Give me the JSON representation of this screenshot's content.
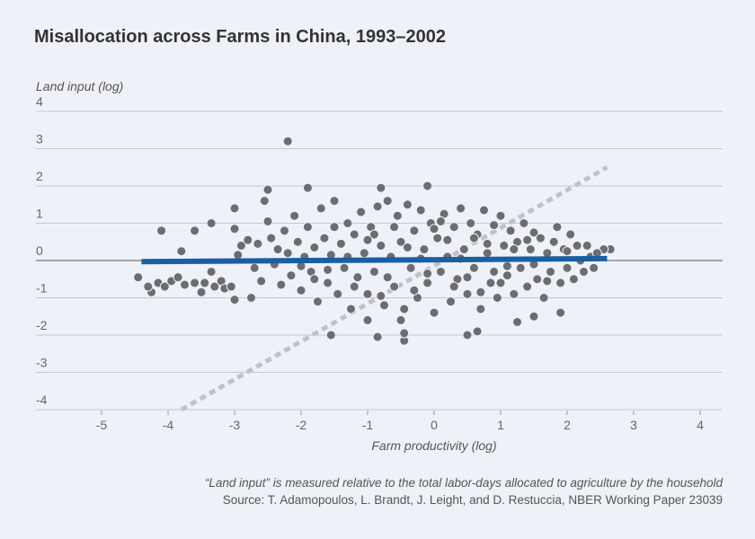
{
  "chart_data": {
    "type": "scatter",
    "title": "Misallocation across Farms in China, 1993–2002",
    "xlabel": "Farm productivity (log)",
    "ylabel": "Land input (log)",
    "xlim": [
      -5.5,
      4.3
    ],
    "ylim": [
      -4,
      4
    ],
    "xticks": [
      "-5",
      "-4",
      "-3",
      "-2",
      "-1",
      "0",
      "1",
      "2",
      "3",
      "4"
    ],
    "yticks": [
      "4",
      "3",
      "2",
      "1",
      "0",
      "-1",
      "-2",
      "-3",
      "-4"
    ],
    "grid": true,
    "fit_line": {
      "x": [
        -4.4,
        2.6
      ],
      "y": [
        -0.03,
        0.05
      ],
      "color": "#1a5fa0"
    },
    "reference_line": {
      "x": [
        -3.8,
        2.6
      ],
      "y": [
        -4,
        2.5
      ],
      "color": "#bfc2c6",
      "style": "dashed"
    },
    "point_color": "#6b6d70",
    "points": [
      [
        -2.2,
        3.2
      ],
      [
        -0.1,
        2.0
      ],
      [
        -0.8,
        1.95
      ],
      [
        -1.9,
        1.95
      ],
      [
        -2.5,
        1.9
      ],
      [
        -2.55,
        1.6
      ],
      [
        -3.0,
        1.4
      ],
      [
        -4.1,
        0.8
      ],
      [
        -3.6,
        0.8
      ],
      [
        -3.35,
        1.0
      ],
      [
        -3.0,
        0.85
      ],
      [
        -4.45,
        -0.45
      ],
      [
        -4.25,
        -0.85
      ],
      [
        -3.8,
        0.25
      ],
      [
        -3.0,
        -1.05
      ],
      [
        -2.75,
        -1.0
      ],
      [
        -1.55,
        -2.0
      ],
      [
        -0.85,
        -2.05
      ],
      [
        -0.45,
        -2.15
      ],
      [
        -0.45,
        -1.95
      ],
      [
        -0.5,
        -1.6
      ],
      [
        0.5,
        -2.0
      ],
      [
        0.65,
        -1.9
      ],
      [
        -1.0,
        -1.6
      ],
      [
        1.25,
        -1.65
      ],
      [
        1.5,
        -1.5
      ],
      [
        1.9,
        -1.4
      ],
      [
        2.65,
        0.3
      ],
      [
        2.55,
        0.3
      ],
      [
        2.3,
        0.4
      ],
      [
        -4.3,
        -0.7
      ],
      [
        -4.15,
        -0.6
      ],
      [
        -4.05,
        -0.7
      ],
      [
        -3.95,
        -0.55
      ],
      [
        -3.85,
        -0.45
      ],
      [
        -3.75,
        -0.65
      ],
      [
        -3.6,
        -0.6
      ],
      [
        -3.5,
        -0.85
      ],
      [
        -3.45,
        -0.6
      ],
      [
        -3.35,
        -0.3
      ],
      [
        -3.3,
        -0.7
      ],
      [
        -3.2,
        -0.55
      ],
      [
        -3.15,
        -0.75
      ],
      [
        -3.05,
        -0.7
      ],
      [
        -2.95,
        0.15
      ],
      [
        -2.9,
        0.4
      ],
      [
        -2.8,
        0.55
      ],
      [
        -2.7,
        -0.2
      ],
      [
        -2.65,
        0.45
      ],
      [
        -2.6,
        -0.55
      ],
      [
        -2.5,
        1.05
      ],
      [
        -2.45,
        0.6
      ],
      [
        -2.4,
        -0.1
      ],
      [
        -2.35,
        0.3
      ],
      [
        -2.3,
        -0.65
      ],
      [
        -2.25,
        0.8
      ],
      [
        -2.2,
        0.2
      ],
      [
        -2.15,
        -0.4
      ],
      [
        -2.1,
        1.2
      ],
      [
        -2.05,
        0.5
      ],
      [
        -2.0,
        -0.8
      ],
      [
        -1.95,
        0.1
      ],
      [
        -1.9,
        0.9
      ],
      [
        -1.85,
        -0.3
      ],
      [
        -1.8,
        0.35
      ],
      [
        -1.75,
        -1.1
      ],
      [
        -1.7,
        1.4
      ],
      [
        -1.65,
        0.6
      ],
      [
        -1.6,
        -0.6
      ],
      [
        -1.55,
        0.15
      ],
      [
        -1.5,
        1.6
      ],
      [
        -1.45,
        -0.9
      ],
      [
        -1.4,
        0.45
      ],
      [
        -1.35,
        -0.2
      ],
      [
        -1.3,
        1.0
      ],
      [
        -1.25,
        -1.3
      ],
      [
        -1.2,
        0.7
      ],
      [
        -1.15,
        -0.45
      ],
      [
        -1.1,
        1.3
      ],
      [
        -1.05,
        0.2
      ],
      [
        -1.0,
        -0.9
      ],
      [
        -0.95,
        0.9
      ],
      [
        -0.9,
        -0.3
      ],
      [
        -0.85,
        1.45
      ],
      [
        -0.8,
        0.4
      ],
      [
        -0.75,
        -1.2
      ],
      [
        -0.7,
        1.6
      ],
      [
        -0.65,
        0.1
      ],
      [
        -0.6,
        -0.7
      ],
      [
        -0.55,
        1.2
      ],
      [
        -0.5,
        0.5
      ],
      [
        -0.45,
        -1.3
      ],
      [
        -0.4,
        1.5
      ],
      [
        -0.35,
        -0.2
      ],
      [
        -0.3,
        0.8
      ],
      [
        -0.25,
        -1.0
      ],
      [
        -0.2,
        1.35
      ],
      [
        -0.15,
        0.3
      ],
      [
        -0.1,
        -0.6
      ],
      [
        -0.05,
        1.0
      ],
      [
        0.0,
        -1.4
      ],
      [
        0.05,
        0.6
      ],
      [
        0.1,
        -0.3
      ],
      [
        0.15,
        1.25
      ],
      [
        0.2,
        0.1
      ],
      [
        0.25,
        -1.1
      ],
      [
        0.3,
        0.9
      ],
      [
        0.35,
        -0.5
      ],
      [
        0.4,
        1.4
      ],
      [
        0.45,
        0.3
      ],
      [
        0.5,
        -0.9
      ],
      [
        0.55,
        1.0
      ],
      [
        0.6,
        -0.2
      ],
      [
        0.65,
        0.7
      ],
      [
        0.7,
        -1.3
      ],
      [
        0.75,
        1.35
      ],
      [
        0.8,
        0.2
      ],
      [
        0.85,
        -0.6
      ],
      [
        0.9,
        0.95
      ],
      [
        0.95,
        -1.0
      ],
      [
        1.0,
        1.2
      ],
      [
        1.05,
        0.4
      ],
      [
        1.1,
        -0.4
      ],
      [
        1.15,
        0.8
      ],
      [
        1.2,
        -0.9
      ],
      [
        1.25,
        0.5
      ],
      [
        1.3,
        -0.2
      ],
      [
        1.35,
        1.0
      ],
      [
        1.4,
        -0.7
      ],
      [
        1.45,
        0.3
      ],
      [
        1.5,
        0.75
      ],
      [
        1.55,
        -0.5
      ],
      [
        1.6,
        0.6
      ],
      [
        1.65,
        -1.0
      ],
      [
        1.7,
        0.2
      ],
      [
        1.75,
        -0.3
      ],
      [
        1.8,
        0.5
      ],
      [
        1.85,
        0.9
      ],
      [
        1.9,
        -0.6
      ],
      [
        1.95,
        0.3
      ],
      [
        2.0,
        -0.2
      ],
      [
        2.05,
        0.7
      ],
      [
        2.1,
        -0.5
      ],
      [
        2.15,
        0.4
      ],
      [
        2.2,
        0.0
      ],
      [
        2.25,
        -0.3
      ],
      [
        2.35,
        0.1
      ],
      [
        2.4,
        -0.2
      ],
      [
        2.45,
        0.2
      ],
      [
        -1.8,
        -0.5
      ],
      [
        -1.5,
        0.9
      ],
      [
        -1.2,
        -0.7
      ],
      [
        -0.9,
        0.7
      ],
      [
        -0.6,
        0.9
      ],
      [
        -0.3,
        -0.8
      ],
      [
        0.0,
        0.85
      ],
      [
        0.3,
        -0.7
      ],
      [
        0.6,
        0.6
      ],
      [
        0.9,
        -0.3
      ],
      [
        1.2,
        0.3
      ],
      [
        1.5,
        -0.1
      ],
      [
        -1.0,
        0.55
      ],
      [
        -0.7,
        -0.45
      ],
      [
        -0.4,
        0.35
      ],
      [
        -0.1,
        -0.35
      ],
      [
        0.2,
        0.55
      ],
      [
        0.5,
        -0.45
      ],
      [
        0.8,
        0.45
      ],
      [
        1.1,
        -0.15
      ],
      [
        1.4,
        0.55
      ],
      [
        1.7,
        -0.55
      ],
      [
        -1.3,
        0.1
      ],
      [
        -0.2,
        0.05
      ],
      [
        0.4,
        0.05
      ],
      [
        1.0,
        -0.6
      ],
      [
        -2.0,
        -0.15
      ],
      [
        -1.6,
        -0.25
      ],
      [
        2.0,
        0.25
      ],
      [
        -0.8,
        -0.95
      ],
      [
        0.1,
        1.05
      ],
      [
        0.7,
        -0.85
      ]
    ]
  },
  "footer": {
    "note": "“Land input” is measured relative to the total labor-days allocated to agriculture by the household",
    "source": "Source: T. Adamopoulos, L. Brandt, J. Leight, and D. Restuccia, NBER Working Paper 23039"
  }
}
